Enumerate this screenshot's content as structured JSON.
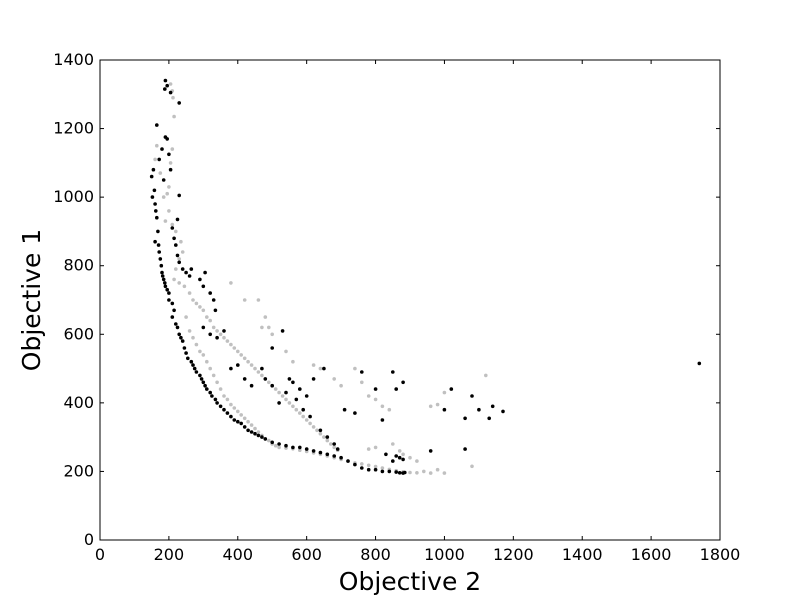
{
  "chart_data": {
    "type": "scatter",
    "title": "",
    "xlabel": "Objective 2",
    "ylabel": "Objective 1",
    "xlim": [
      0,
      1800
    ],
    "ylim": [
      0,
      1400
    ],
    "x_ticks": [
      0,
      200,
      400,
      600,
      800,
      1000,
      1200,
      1400,
      1600,
      1800
    ],
    "y_ticks": [
      0,
      200,
      400,
      600,
      800,
      1000,
      1200,
      1400
    ],
    "x_tick_labels": [
      "0",
      "200",
      "400",
      "600",
      "800",
      "1000",
      "1200",
      "1400",
      "1600",
      "1800"
    ],
    "y_tick_labels": [
      "0",
      "200",
      "400",
      "600",
      "800",
      "1000",
      "1200",
      "1400"
    ],
    "grid": false,
    "legend": "none",
    "series": [
      {
        "color": "#000000",
        "points": [
          [
            150,
            1060
          ],
          [
            152,
            1000
          ],
          [
            155,
            1080
          ],
          [
            158,
            1020
          ],
          [
            160,
            980
          ],
          [
            162,
            960
          ],
          [
            165,
            940
          ],
          [
            168,
            900
          ],
          [
            160,
            870
          ],
          [
            170,
            860
          ],
          [
            172,
            840
          ],
          [
            175,
            820
          ],
          [
            178,
            800
          ],
          [
            180,
            780
          ],
          [
            182,
            770
          ],
          [
            185,
            760
          ],
          [
            188,
            750
          ],
          [
            190,
            740
          ],
          [
            195,
            730
          ],
          [
            200,
            720
          ],
          [
            165,
            1210
          ],
          [
            172,
            1110
          ],
          [
            180,
            1140
          ],
          [
            185,
            1050
          ],
          [
            190,
            1175
          ],
          [
            195,
            1170
          ],
          [
            200,
            1125
          ],
          [
            205,
            1080
          ],
          [
            188,
            1315
          ],
          [
            190,
            1340
          ],
          [
            195,
            1325
          ],
          [
            205,
            1305
          ],
          [
            230,
            1275
          ],
          [
            230,
            1005
          ],
          [
            225,
            935
          ],
          [
            210,
            910
          ],
          [
            215,
            880
          ],
          [
            220,
            860
          ],
          [
            225,
            830
          ],
          [
            230,
            810
          ],
          [
            240,
            790
          ],
          [
            250,
            780
          ],
          [
            260,
            770
          ],
          [
            265,
            790
          ],
          [
            290,
            760
          ],
          [
            300,
            740
          ],
          [
            305,
            780
          ],
          [
            320,
            720
          ],
          [
            330,
            700
          ],
          [
            335,
            670
          ],
          [
            200,
            700
          ],
          [
            210,
            690
          ],
          [
            215,
            670
          ],
          [
            210,
            650
          ],
          [
            220,
            630
          ],
          [
            225,
            620
          ],
          [
            230,
            600
          ],
          [
            235,
            590
          ],
          [
            240,
            580
          ],
          [
            245,
            560
          ],
          [
            250,
            545
          ],
          [
            255,
            530
          ],
          [
            265,
            520
          ],
          [
            270,
            510
          ],
          [
            275,
            500
          ],
          [
            280,
            490
          ],
          [
            290,
            480
          ],
          [
            295,
            470
          ],
          [
            300,
            460
          ],
          [
            305,
            450
          ],
          [
            310,
            440
          ],
          [
            320,
            430
          ],
          [
            325,
            420
          ],
          [
            335,
            410
          ],
          [
            340,
            400
          ],
          [
            350,
            390
          ],
          [
            360,
            380
          ],
          [
            370,
            370
          ],
          [
            380,
            360
          ],
          [
            390,
            350
          ],
          [
            400,
            345
          ],
          [
            410,
            340
          ],
          [
            420,
            330
          ],
          [
            430,
            320
          ],
          [
            440,
            315
          ],
          [
            450,
            310
          ],
          [
            460,
            305
          ],
          [
            470,
            300
          ],
          [
            480,
            295
          ],
          [
            500,
            285
          ],
          [
            520,
            280
          ],
          [
            540,
            275
          ],
          [
            560,
            270
          ],
          [
            580,
            270
          ],
          [
            600,
            265
          ],
          [
            620,
            260
          ],
          [
            640,
            255
          ],
          [
            660,
            250
          ],
          [
            680,
            245
          ],
          [
            700,
            240
          ],
          [
            720,
            230
          ],
          [
            740,
            220
          ],
          [
            760,
            210
          ],
          [
            780,
            205
          ],
          [
            800,
            205
          ],
          [
            820,
            200
          ],
          [
            840,
            200
          ],
          [
            860,
            198
          ],
          [
            870,
            196
          ],
          [
            880,
            195
          ],
          [
            885,
            197
          ],
          [
            830,
            250
          ],
          [
            860,
            245
          ],
          [
            870,
            240
          ],
          [
            880,
            235
          ],
          [
            850,
            230
          ],
          [
            300,
            620
          ],
          [
            320,
            600
          ],
          [
            340,
            590
          ],
          [
            360,
            610
          ],
          [
            380,
            500
          ],
          [
            400,
            510
          ],
          [
            420,
            470
          ],
          [
            440,
            450
          ],
          [
            470,
            500
          ],
          [
            480,
            470
          ],
          [
            500,
            450
          ],
          [
            520,
            400
          ],
          [
            540,
            430
          ],
          [
            560,
            460
          ],
          [
            580,
            440
          ],
          [
            600,
            420
          ],
          [
            620,
            470
          ],
          [
            650,
            500
          ],
          [
            500,
            560
          ],
          [
            530,
            610
          ],
          [
            550,
            470
          ],
          [
            570,
            410
          ],
          [
            590,
            380
          ],
          [
            610,
            360
          ],
          [
            640,
            320
          ],
          [
            660,
            300
          ],
          [
            680,
            280
          ],
          [
            690,
            265
          ],
          [
            710,
            380
          ],
          [
            740,
            370
          ],
          [
            760,
            490
          ],
          [
            800,
            440
          ],
          [
            820,
            350
          ],
          [
            850,
            490
          ],
          [
            860,
            440
          ],
          [
            880,
            460
          ],
          [
            960,
            260
          ],
          [
            1000,
            380
          ],
          [
            1020,
            440
          ],
          [
            1060,
            355
          ],
          [
            1060,
            265
          ],
          [
            1080,
            420
          ],
          [
            1100,
            380
          ],
          [
            1130,
            355
          ],
          [
            1140,
            390
          ],
          [
            1170,
            375
          ],
          [
            1740,
            515
          ]
        ]
      },
      {
        "color": "#c0c0c0",
        "points": [
          [
            160,
            1110
          ],
          [
            165,
            1150
          ],
          [
            175,
            1070
          ],
          [
            185,
            1000
          ],
          [
            195,
            1010
          ],
          [
            200,
            1030
          ],
          [
            205,
            1100
          ],
          [
            210,
            1140
          ],
          [
            215,
            1235
          ],
          [
            212,
            1290
          ],
          [
            205,
            1330
          ],
          [
            210,
            1310
          ],
          [
            200,
            960
          ],
          [
            190,
            930
          ],
          [
            210,
            920
          ],
          [
            220,
            900
          ],
          [
            235,
            870
          ],
          [
            240,
            840
          ],
          [
            230,
            820
          ],
          [
            220,
            790
          ],
          [
            215,
            760
          ],
          [
            230,
            750
          ],
          [
            245,
            740
          ],
          [
            260,
            720
          ],
          [
            270,
            700
          ],
          [
            280,
            690
          ],
          [
            290,
            680
          ],
          [
            300,
            670
          ],
          [
            310,
            650
          ],
          [
            320,
            640
          ],
          [
            330,
            620
          ],
          [
            340,
            610
          ],
          [
            350,
            600
          ],
          [
            360,
            590
          ],
          [
            370,
            580
          ],
          [
            380,
            570
          ],
          [
            390,
            560
          ],
          [
            400,
            550
          ],
          [
            410,
            540
          ],
          [
            420,
            530
          ],
          [
            430,
            520
          ],
          [
            440,
            510
          ],
          [
            450,
            500
          ],
          [
            460,
            490
          ],
          [
            470,
            480
          ],
          [
            480,
            470
          ],
          [
            490,
            460
          ],
          [
            500,
            450
          ],
          [
            510,
            440
          ],
          [
            520,
            430
          ],
          [
            530,
            420
          ],
          [
            540,
            410
          ],
          [
            550,
            400
          ],
          [
            560,
            390
          ],
          [
            570,
            380
          ],
          [
            580,
            370
          ],
          [
            590,
            360
          ],
          [
            600,
            350
          ],
          [
            610,
            340
          ],
          [
            620,
            330
          ],
          [
            630,
            320
          ],
          [
            640,
            310
          ],
          [
            650,
            300
          ],
          [
            660,
            290
          ],
          [
            670,
            280
          ],
          [
            680,
            270
          ],
          [
            690,
            262
          ],
          [
            250,
            650
          ],
          [
            260,
            610
          ],
          [
            270,
            590
          ],
          [
            280,
            570
          ],
          [
            290,
            550
          ],
          [
            300,
            540
          ],
          [
            310,
            520
          ],
          [
            320,
            500
          ],
          [
            330,
            480
          ],
          [
            340,
            460
          ],
          [
            350,
            440
          ],
          [
            360,
            420
          ],
          [
            370,
            410
          ],
          [
            380,
            395
          ],
          [
            390,
            385
          ],
          [
            400,
            375
          ],
          [
            410,
            365
          ],
          [
            420,
            355
          ],
          [
            430,
            345
          ],
          [
            440,
            335
          ],
          [
            450,
            325
          ],
          [
            460,
            315
          ],
          [
            470,
            305
          ],
          [
            480,
            295
          ],
          [
            490,
            290
          ],
          [
            500,
            280
          ],
          [
            510,
            275
          ],
          [
            520,
            270
          ],
          [
            540,
            268
          ],
          [
            560,
            266
          ],
          [
            580,
            262
          ],
          [
            600,
            258
          ],
          [
            620,
            254
          ],
          [
            640,
            250
          ],
          [
            660,
            245
          ],
          [
            680,
            240
          ],
          [
            700,
            235
          ],
          [
            720,
            230
          ],
          [
            740,
            225
          ],
          [
            760,
            222
          ],
          [
            780,
            218
          ],
          [
            800,
            214
          ],
          [
            820,
            210
          ],
          [
            840,
            206
          ],
          [
            860,
            202
          ],
          [
            880,
            199
          ],
          [
            900,
            197
          ],
          [
            920,
            196
          ],
          [
            940,
            200
          ],
          [
            960,
            195
          ],
          [
            980,
            205
          ],
          [
            1000,
            195
          ],
          [
            1080,
            215
          ],
          [
            380,
            750
          ],
          [
            420,
            700
          ],
          [
            460,
            700
          ],
          [
            470,
            620
          ],
          [
            480,
            650
          ],
          [
            490,
            620
          ],
          [
            500,
            600
          ],
          [
            540,
            550
          ],
          [
            560,
            520
          ],
          [
            620,
            510
          ],
          [
            640,
            500
          ],
          [
            680,
            470
          ],
          [
            700,
            450
          ],
          [
            740,
            500
          ],
          [
            760,
            460
          ],
          [
            780,
            420
          ],
          [
            800,
            410
          ],
          [
            820,
            390
          ],
          [
            840,
            380
          ],
          [
            960,
            390
          ],
          [
            980,
            395
          ],
          [
            1000,
            430
          ],
          [
            1120,
            480
          ],
          [
            850,
            280
          ],
          [
            870,
            260
          ],
          [
            880,
            250
          ],
          [
            900,
            240
          ],
          [
            920,
            230
          ],
          [
            800,
            270
          ],
          [
            780,
            265
          ]
        ]
      }
    ]
  }
}
